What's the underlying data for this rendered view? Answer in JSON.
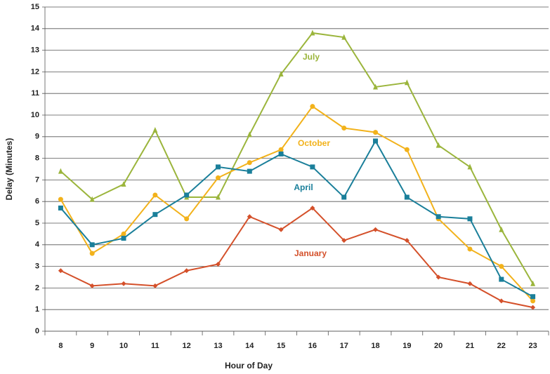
{
  "chart_data": {
    "type": "line",
    "x_label": "Hour of Day",
    "y_label": "Delay (Minutes)",
    "categories": [
      "8",
      "9",
      "10",
      "11",
      "12",
      "13",
      "14",
      "15",
      "16",
      "17",
      "18",
      "19",
      "20",
      "21",
      "22",
      "23"
    ],
    "series": [
      {
        "name": "July",
        "color": "#9bb53c",
        "marker": "triangle",
        "values": [
          7.4,
          6.1,
          6.8,
          9.3,
          6.2,
          6.2,
          9.1,
          11.9,
          13.8,
          13.6,
          11.3,
          11.5,
          8.6,
          7.6,
          4.7,
          2.2
        ]
      },
      {
        "name": "October",
        "color": "#f2b21b",
        "marker": "circle",
        "values": [
          6.1,
          3.6,
          4.5,
          6.3,
          5.2,
          7.1,
          7.8,
          8.4,
          10.4,
          9.4,
          9.2,
          8.4,
          5.2,
          3.8,
          3.0,
          1.4
        ]
      },
      {
        "name": "April",
        "color": "#1a7f9a",
        "marker": "square",
        "values": [
          5.7,
          4.0,
          4.3,
          5.4,
          6.3,
          7.6,
          7.4,
          8.2,
          7.6,
          6.2,
          8.8,
          6.2,
          5.3,
          5.2,
          2.4,
          1.6
        ]
      },
      {
        "name": "January",
        "color": "#d4502a",
        "marker": "diamond",
        "values": [
          2.8,
          2.1,
          2.2,
          2.1,
          2.8,
          3.1,
          5.3,
          4.7,
          5.7,
          4.2,
          4.7,
          4.2,
          2.5,
          2.2,
          1.4,
          1.1
        ]
      }
    ],
    "ylim": [
      0,
      15
    ],
    "yticks": [
      0,
      1,
      2,
      3,
      4,
      5,
      6,
      7,
      8,
      9,
      10,
      11,
      12,
      13,
      14,
      15
    ],
    "grid": true
  }
}
